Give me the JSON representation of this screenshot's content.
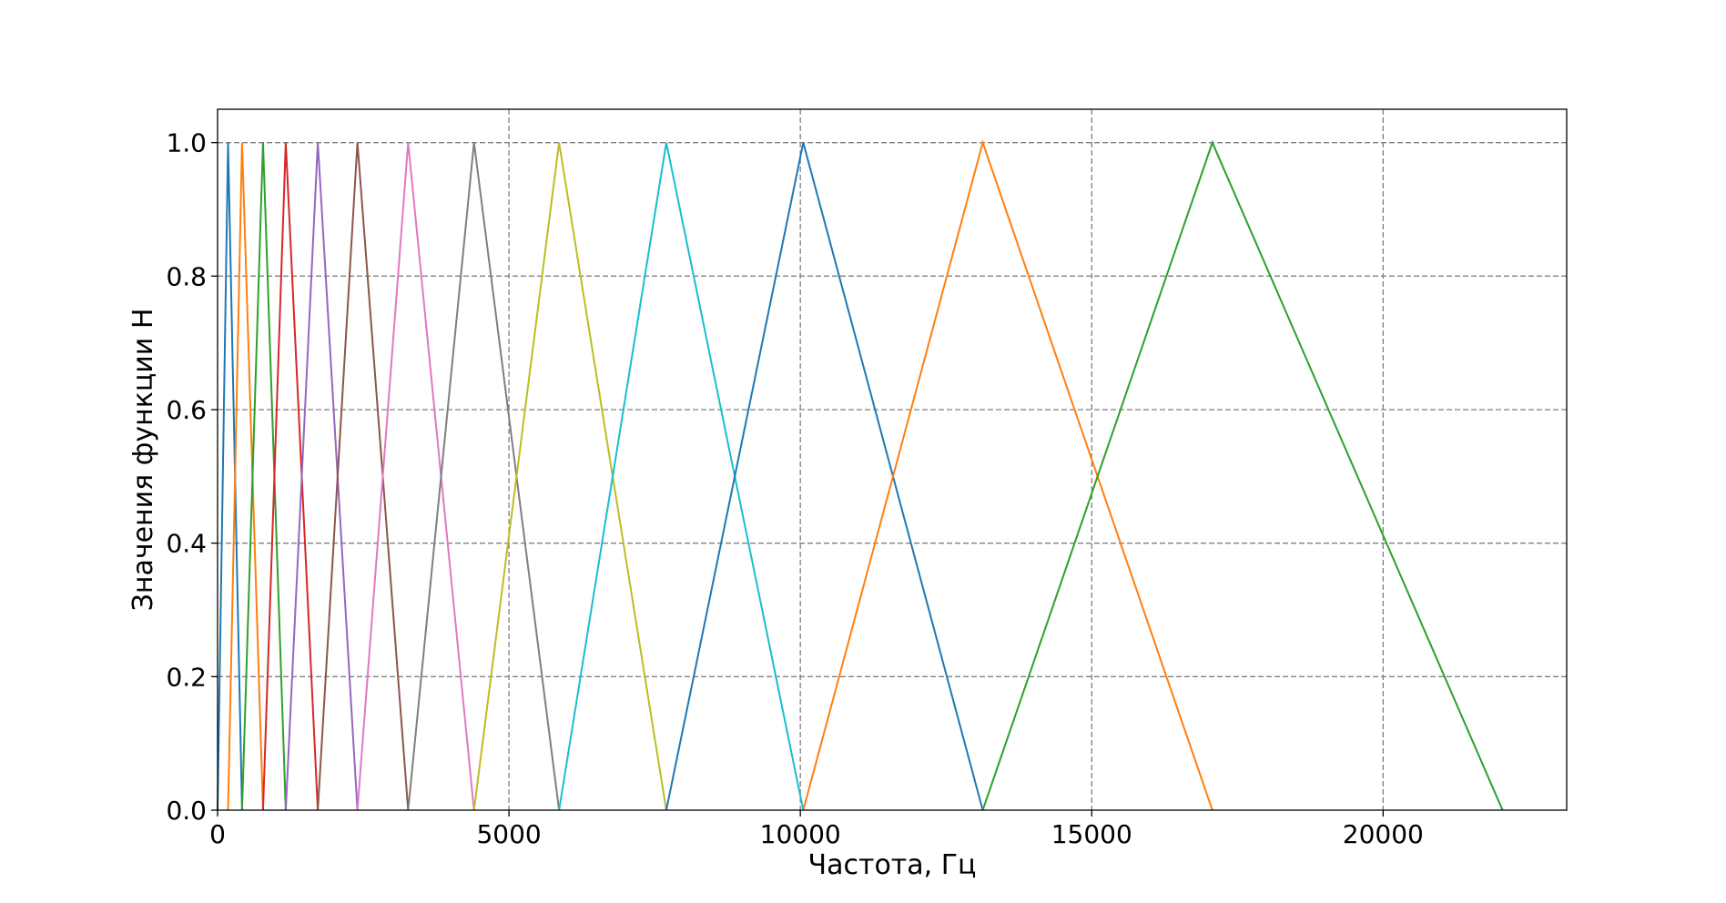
{
  "chart_data": {
    "type": "line",
    "title": "",
    "xlabel": "Частота, Гц",
    "ylabel": "Значения функции H",
    "xlim": [
      0,
      23150
    ],
    "ylim": [
      0,
      1.05
    ],
    "xticks": [
      0,
      5000,
      10000,
      15000,
      20000
    ],
    "xtick_labels": [
      "0",
      "5000",
      "10000",
      "15000",
      "20000"
    ],
    "yticks": [
      0.0,
      0.2,
      0.4,
      0.6,
      0.8,
      1.0
    ],
    "ytick_labels": [
      "0.0",
      "0.2",
      "0.4",
      "0.6",
      "0.8",
      "1.0"
    ],
    "grid": true,
    "grid_style": "dashed",
    "points": [
      0,
      180,
      420,
      780,
      1170,
      1720,
      2400,
      3270,
      4400,
      5860,
      7700,
      10050,
      13130,
      17070,
      22050
    ],
    "series": [
      {
        "color": "#1f77b4",
        "x": [
          0,
          180,
          420
        ],
        "y": [
          0,
          1,
          0
        ]
      },
      {
        "color": "#ff7f0e",
        "x": [
          180,
          420,
          780
        ],
        "y": [
          0,
          1,
          0
        ]
      },
      {
        "color": "#2ca02c",
        "x": [
          420,
          780,
          1170
        ],
        "y": [
          0,
          1,
          0
        ]
      },
      {
        "color": "#d62728",
        "x": [
          780,
          1170,
          1720
        ],
        "y": [
          0,
          1,
          0
        ]
      },
      {
        "color": "#9467bd",
        "x": [
          1170,
          1720,
          2400
        ],
        "y": [
          0,
          1,
          0
        ]
      },
      {
        "color": "#8c564b",
        "x": [
          1720,
          2400,
          3270
        ],
        "y": [
          0,
          1,
          0
        ]
      },
      {
        "color": "#e377c2",
        "x": [
          2400,
          3270,
          4400
        ],
        "y": [
          0,
          1,
          0
        ]
      },
      {
        "color": "#7f7f7f",
        "x": [
          3270,
          4400,
          5860
        ],
        "y": [
          0,
          1,
          0
        ]
      },
      {
        "color": "#bcbd22",
        "x": [
          4400,
          5860,
          7700
        ],
        "y": [
          0,
          1,
          0
        ]
      },
      {
        "color": "#17becf",
        "x": [
          5860,
          7700,
          10050
        ],
        "y": [
          0,
          1,
          0
        ]
      },
      {
        "color": "#1f77b4",
        "x": [
          7700,
          10050,
          13130
        ],
        "y": [
          0,
          1,
          0
        ]
      },
      {
        "color": "#ff7f0e",
        "x": [
          10050,
          13130,
          17070
        ],
        "y": [
          0,
          1,
          0
        ]
      },
      {
        "color": "#2ca02c",
        "x": [
          13130,
          17070,
          22050
        ],
        "y": [
          0,
          1,
          0
        ]
      }
    ]
  }
}
